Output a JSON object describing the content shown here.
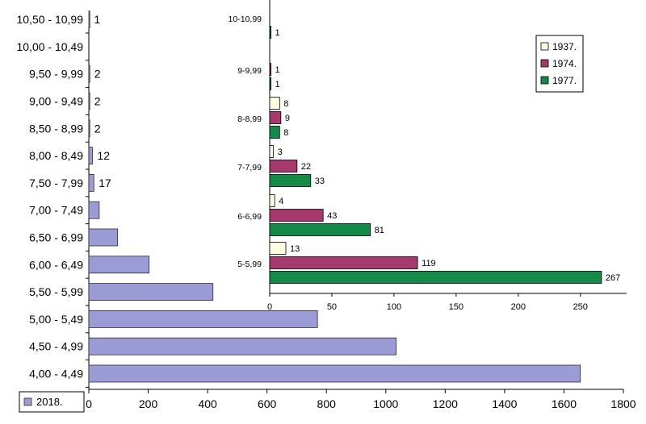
{
  "chart_data": [
    {
      "type": "bar",
      "orientation": "horizontal",
      "categories": [
        "4,00 - 4,49",
        "4,50 - 4,99",
        "5,00 - 5,49",
        "5,50 - 5,99",
        "6,00 - 6,49",
        "6,50 - 6,99",
        "7,00 - 7,49",
        "7,50 - 7,99",
        "8,00 - 8,49",
        "8,50 - 8,99",
        "9,00 - 9,49",
        "9,50 - 9,99",
        "10,00 - 10,49",
        "10,50 - 10,99"
      ],
      "series": [
        {
          "name": "2018.",
          "color": "#9b9bd5",
          "values": [
            1655,
            1035,
            770,
            418,
            203,
            97,
            35,
            17,
            12,
            2,
            2,
            2,
            0,
            1
          ],
          "labels": [
            "",
            "",
            "",
            "",
            "",
            "",
            "",
            "17",
            "12",
            "2",
            "2",
            "2",
            "",
            "1"
          ]
        }
      ],
      "xlim": [
        0,
        1800
      ],
      "xticks": [
        "0",
        "200",
        "400",
        "600",
        "800",
        "1000",
        "1200",
        "1400",
        "1600",
        "1800"
      ],
      "legend": {
        "position": "bottom-left",
        "entries": [
          "2018."
        ]
      },
      "grid": false
    },
    {
      "type": "bar",
      "orientation": "horizontal",
      "categories": [
        "5-5,99",
        "6-6,99",
        "7-7,99",
        "8-8,99",
        "9-9,99",
        "10-10,99"
      ],
      "series": [
        {
          "name": "1937.",
          "color": "#fffde0",
          "values": [
            13,
            4,
            3,
            8,
            0,
            0
          ],
          "labels": [
            "13",
            "4",
            "3",
            "8",
            "",
            ""
          ]
        },
        {
          "name": "1974.",
          "color": "#a63a6e",
          "values": [
            119,
            43,
            22,
            9,
            1,
            0
          ],
          "labels": [
            "119",
            "43",
            "22",
            "9",
            "1",
            ""
          ]
        },
        {
          "name": "1977.",
          "color": "#138a48",
          "values": [
            267,
            81,
            33,
            8,
            1,
            1
          ],
          "labels": [
            "267",
            "81",
            "33",
            "8",
            "1",
            "1"
          ]
        }
      ],
      "xlim": [
        0,
        285
      ],
      "xticks": [
        "0",
        "50",
        "100",
        "150",
        "200",
        "250"
      ],
      "legend": {
        "position": "top-right",
        "entries": [
          "1937.",
          "1974.",
          "1977."
        ]
      },
      "grid": false
    }
  ]
}
